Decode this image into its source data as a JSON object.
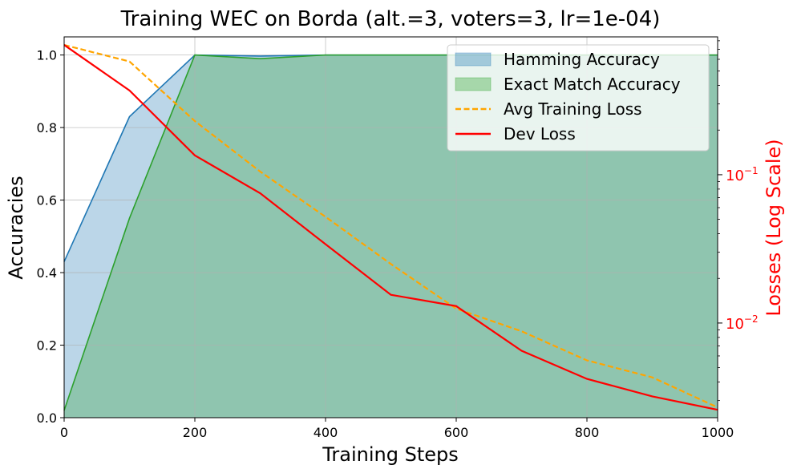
{
  "chart_data": {
    "type": "area",
    "title": "Training WEC on Borda (alt.=3, voters=3, lr=1e-04)",
    "xlabel": "Training Steps",
    "ylabel": "Accuracies",
    "y2label": "Losses (Log Scale)",
    "xlim": [
      0,
      1000
    ],
    "ylim": [
      0,
      1.05
    ],
    "y2lim": [
      0.0023,
      0.85
    ],
    "y2scale": "log",
    "grid": true,
    "legend_position": "top-right",
    "x": [
      0,
      100,
      200,
      300,
      400,
      500,
      600,
      700,
      800,
      900,
      1000
    ],
    "x_ticks": [
      0,
      200,
      400,
      600,
      800,
      1000
    ],
    "x_tick_labels": [
      "0",
      "200",
      "400",
      "600",
      "800",
      "1000"
    ],
    "y_ticks": [
      0.0,
      0.2,
      0.4,
      0.6,
      0.8,
      1.0
    ],
    "y_tick_labels": [
      "0.0",
      "0.2",
      "0.4",
      "0.6",
      "0.8",
      "1.0"
    ],
    "y2_major_ticks": [
      0.01,
      0.1
    ],
    "y2_tick_labels": [
      {
        "base": "10",
        "exp": "−2"
      },
      {
        "base": "10",
        "exp": "−1"
      }
    ],
    "series": [
      {
        "name": "Hamming Accuracy",
        "axis": "left",
        "style": "area",
        "color": "#1f77b4",
        "values": [
          0.43,
          0.83,
          1.0,
          0.997,
          1.0,
          1.0,
          1.0,
          1.0,
          1.0,
          1.0,
          1.0
        ]
      },
      {
        "name": "Exact Match Accuracy",
        "axis": "left",
        "style": "area",
        "color": "#2ca02c",
        "values": [
          0.02,
          0.55,
          1.0,
          0.99,
          1.0,
          1.0,
          1.0,
          1.0,
          1.0,
          1.0,
          1.0
        ]
      },
      {
        "name": "Avg Training Loss",
        "axis": "right",
        "style": "dashed",
        "color": "#ffa500",
        "values": [
          0.75,
          0.58,
          0.23,
          0.105,
          0.052,
          0.025,
          0.0125,
          0.0088,
          0.0056,
          0.0043,
          0.0027
        ]
      },
      {
        "name": "Dev Loss",
        "axis": "right",
        "style": "solid",
        "color": "#ff0000",
        "values": [
          0.75,
          0.37,
          0.135,
          0.075,
          0.034,
          0.0155,
          0.013,
          0.0065,
          0.0042,
          0.0032,
          0.0026
        ]
      }
    ]
  }
}
